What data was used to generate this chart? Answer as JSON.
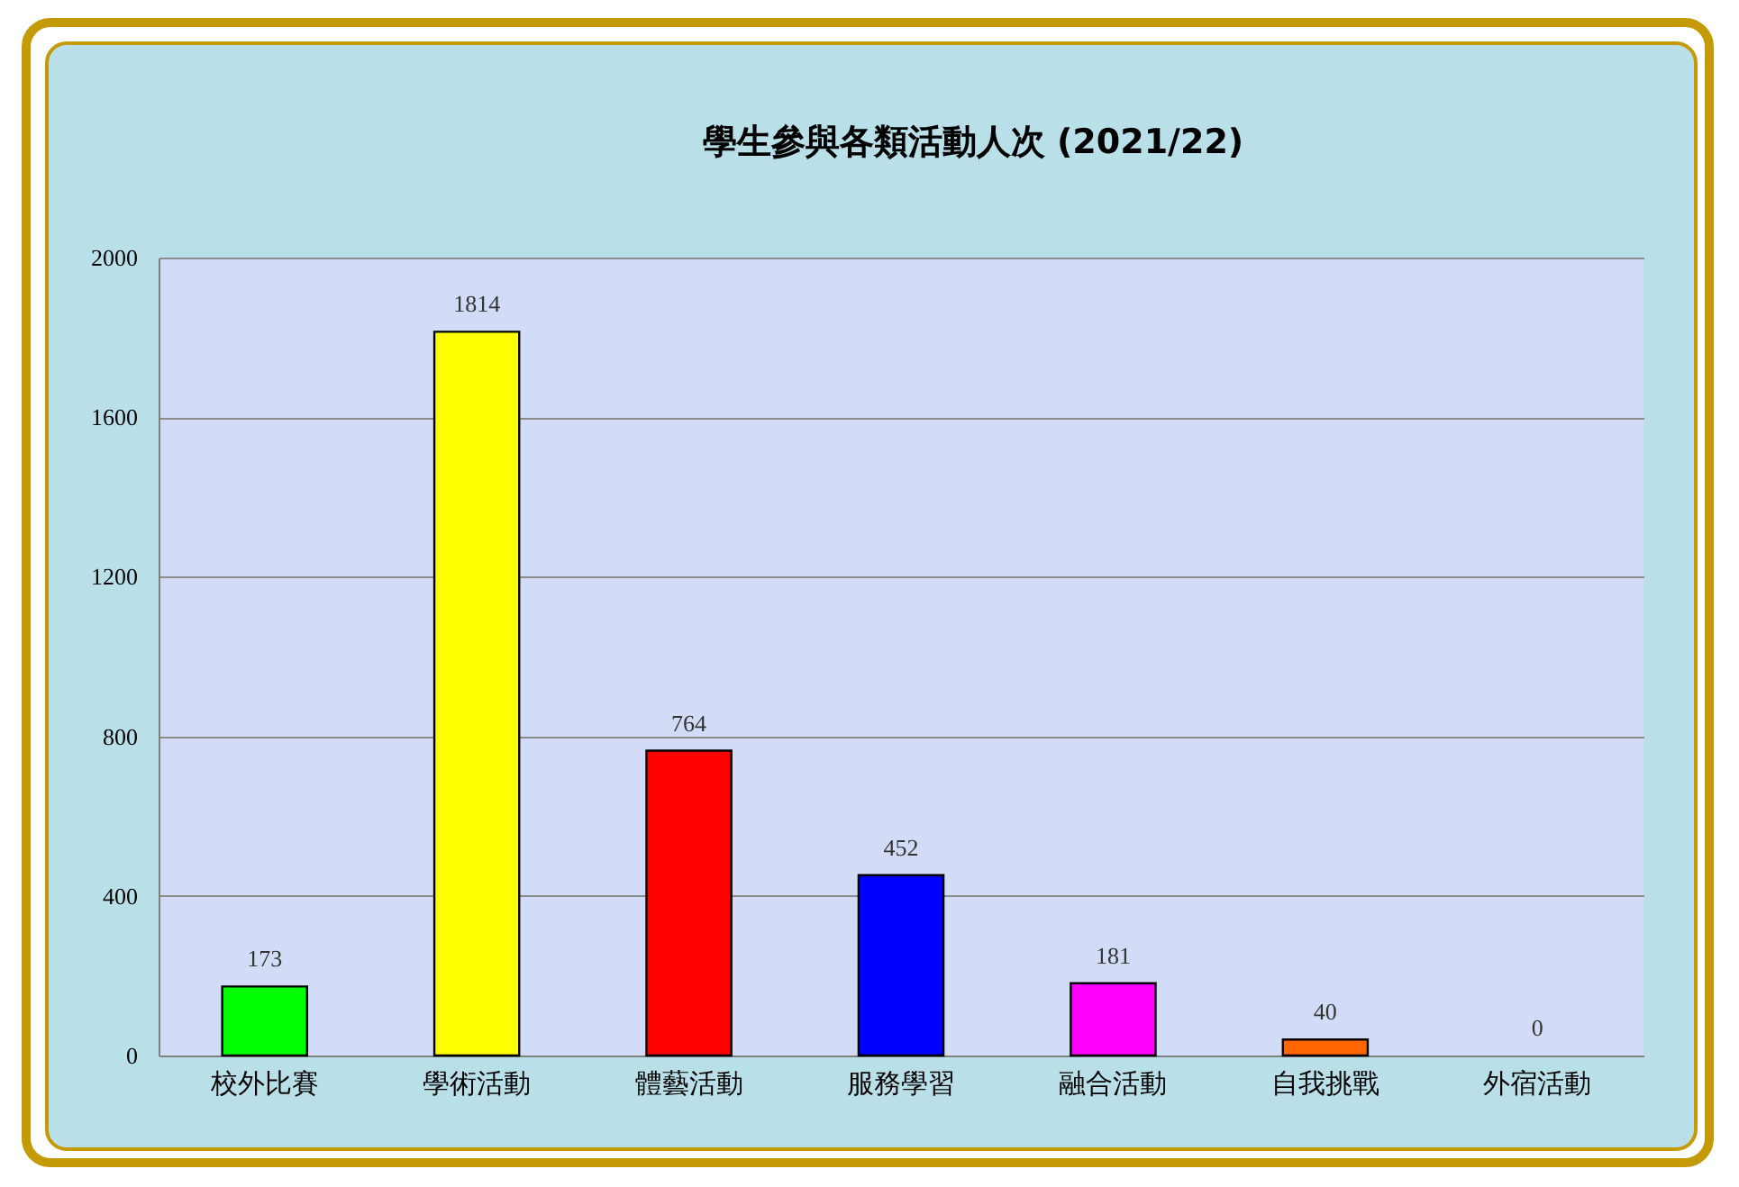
{
  "chart_data": {
    "type": "bar",
    "title": "學生參與各類活動人次 (2021/22)",
    "categories": [
      "校外比賽",
      "學術活動",
      "體藝活動",
      "服務學習",
      "融合活動",
      "自我挑戰",
      "外宿活動"
    ],
    "values": [
      173,
      1814,
      764,
      452,
      181,
      40,
      0
    ],
    "colors": [
      "#00ff00",
      "#ffff00",
      "#ff0000",
      "#0000ff",
      "#ff00ff",
      "#ff6600",
      "#7f7f7f"
    ],
    "ylim": [
      0,
      2000
    ],
    "yticks": [
      0,
      400,
      800,
      1200,
      1600,
      2000
    ],
    "grid": "y",
    "data_labels": true
  }
}
